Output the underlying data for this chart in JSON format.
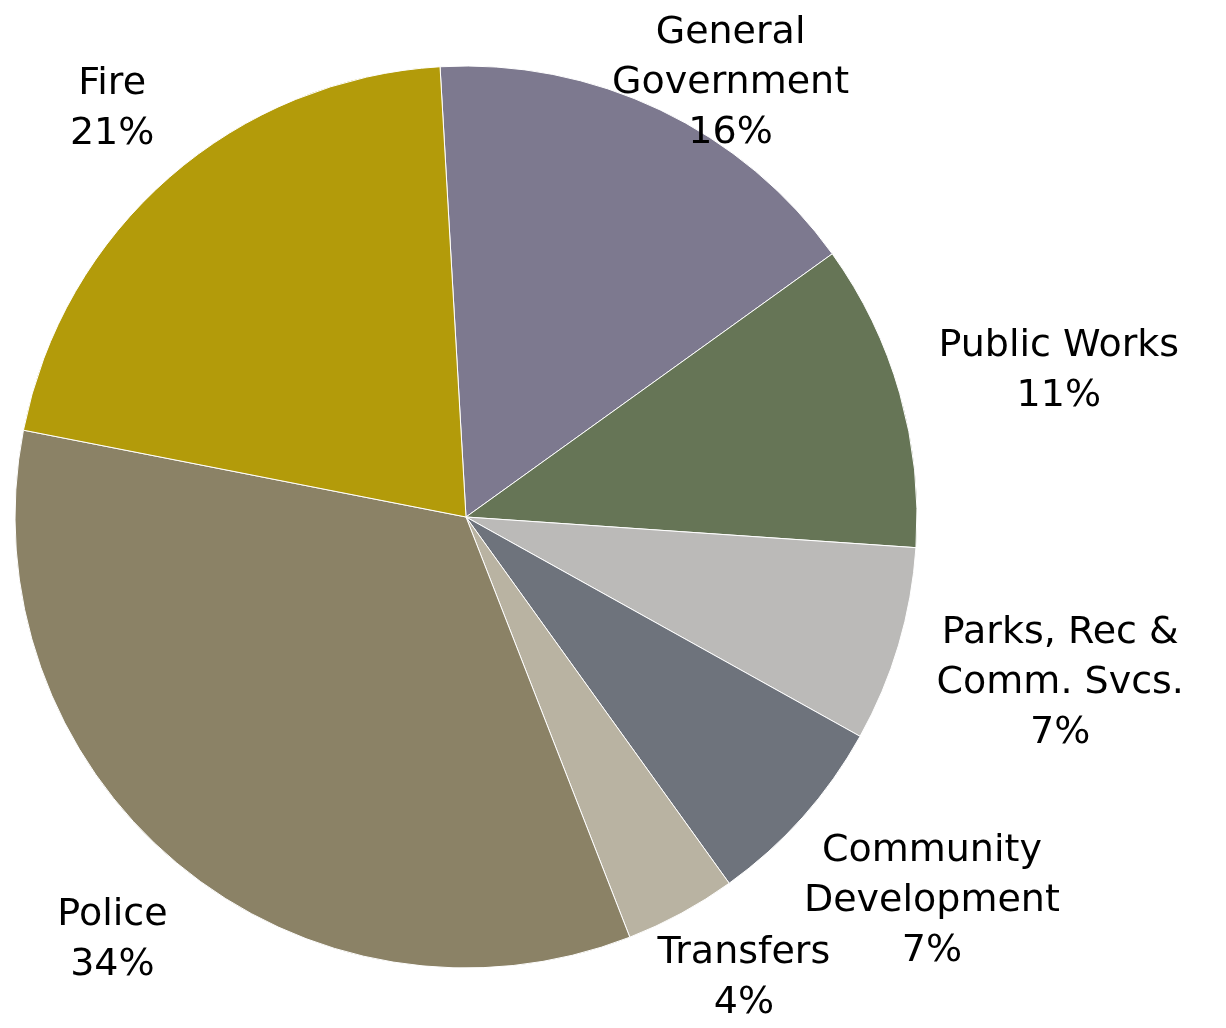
{
  "chart_data": {
    "type": "pie",
    "categories": [
      "General Government",
      "Public Works",
      "Parks, Rec & Comm. Svcs.",
      "Community Development",
      "Transfers",
      "Police",
      "Fire"
    ],
    "values": [
      16,
      11,
      7,
      7,
      4,
      34,
      21
    ],
    "colors": [
      "#7d798f",
      "#667556",
      "#bbbab8",
      "#6e737c",
      "#b9b3a2",
      "#8b8266",
      "#b39b0a"
    ],
    "value_labels": [
      "16%",
      "11%",
      "7%",
      "7%",
      "4%",
      "34%",
      "21%"
    ]
  }
}
